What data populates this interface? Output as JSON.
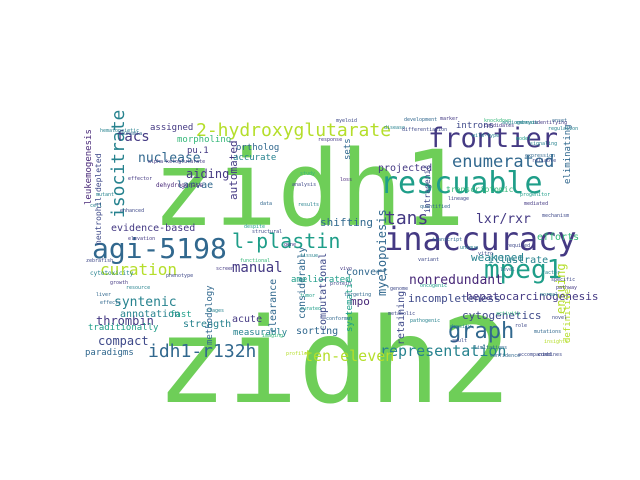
{
  "palette": {
    "purple": "#482878",
    "indigo": "#3e4989",
    "blue": "#31688e",
    "teal": "#26828e",
    "sea": "#1f9e89",
    "green": "#35b779",
    "lime": "#6ece58",
    "yellowgreen": "#b5de2b",
    "yellow": "#cde11d",
    "darkblue": "#443983"
  },
  "words": [
    {
      "text": "zidh2",
      "color": "lime"
    },
    {
      "text": "zidh1",
      "color": "lime"
    },
    {
      "text": "inaccuracy",
      "color": "darkblue"
    },
    {
      "text": "rescuable",
      "color": "sea"
    },
    {
      "text": "frontier",
      "color": "darkblue"
    },
    {
      "text": "agi-5198",
      "color": "blue"
    },
    {
      "text": "2-hydroxyglutarate",
      "color": "yellowgreen"
    },
    {
      "text": "mpeg1",
      "color": "sea"
    },
    {
      "text": "l-plastin",
      "color": "sea"
    },
    {
      "text": "enumerated",
      "color": "blue"
    },
    {
      "text": "isocitrate",
      "color": "teal"
    },
    {
      "text": "graph",
      "color": "blue"
    },
    {
      "text": "idh1-r132h",
      "color": "blue"
    },
    {
      "text": "representation",
      "color": "teal"
    },
    {
      "text": "tans",
      "color": "darkblue"
    },
    {
      "text": "curation",
      "color": "yellowgreen"
    },
    {
      "text": "ten-eleven",
      "color": "yellowgreen"
    },
    {
      "text": "nuclease",
      "color": "blue"
    },
    {
      "text": "manual",
      "color": "darkblue"
    },
    {
      "text": "facs",
      "color": "darkblue"
    },
    {
      "text": "lxr/rxr",
      "color": "darkblue"
    },
    {
      "text": "nonredundant",
      "color": "purple"
    },
    {
      "text": "syntenic",
      "color": "teal"
    },
    {
      "text": "incompleteness",
      "color": "indigo"
    },
    {
      "text": "cytogenetics",
      "color": "indigo"
    },
    {
      "text": "aiding",
      "color": "darkblue"
    },
    {
      "text": "thrombin",
      "color": "darkblue"
    },
    {
      "text": "myelopoiesis",
      "color": "blue"
    },
    {
      "text": "weakened",
      "color": "teal"
    },
    {
      "text": "compact",
      "color": "indigo"
    },
    {
      "text": "ensuing",
      "color": "yellowgreen"
    },
    {
      "text": "automated",
      "color": "darkblue"
    },
    {
      "text": "annotation",
      "color": "teal"
    },
    {
      "text": "hepatocarcinogenesis",
      "color": "darkblue"
    },
    {
      "text": "mpo",
      "color": "purple"
    },
    {
      "text": "illustrate",
      "color": "teal"
    },
    {
      "text": "efforts",
      "color": "green"
    },
    {
      "text": "larvae",
      "color": "blue"
    },
    {
      "text": "acute",
      "color": "darkblue"
    },
    {
      "text": "evidence-based",
      "color": "darkblue"
    },
    {
      "text": "assigned",
      "color": "darkblue"
    },
    {
      "text": "morpholino",
      "color": "green"
    },
    {
      "text": "accurate",
      "color": "teal"
    },
    {
      "text": "ortholog",
      "color": "blue"
    },
    {
      "text": "projected",
      "color": "darkblue"
    },
    {
      "text": "pu.1",
      "color": "darkblue"
    },
    {
      "text": "considerably",
      "color": "blue"
    },
    {
      "text": "shifting",
      "color": "blue"
    },
    {
      "text": "convert",
      "color": "blue"
    },
    {
      "text": "ameliorated",
      "color": "sea"
    },
    {
      "text": "sorting",
      "color": "blue"
    },
    {
      "text": "strength",
      "color": "teal"
    },
    {
      "text": "clearance",
      "color": "blue"
    },
    {
      "text": "methodology",
      "color": "blue"
    },
    {
      "text": "measurably",
      "color": "teal"
    },
    {
      "text": "computational",
      "color": "indigo"
    },
    {
      "text": "systematic",
      "color": "sea"
    },
    {
      "text": "retaining",
      "color": "indigo"
    },
    {
      "text": "definitive",
      "color": "yellowgreen"
    },
    {
      "text": "leukemogenesis",
      "color": "purple"
    },
    {
      "text": "neutrophil-depleted",
      "color": "indigo"
    },
    {
      "text": "paradigms",
      "color": "blue"
    },
    {
      "text": "traditionally",
      "color": "sea"
    },
    {
      "text": "fast",
      "color": "sea"
    },
    {
      "text": "eliminating",
      "color": "blue"
    },
    {
      "text": "introns",
      "color": "indigo"
    },
    {
      "text": "intragenic",
      "color": "indigo"
    },
    {
      "text": "transcriptomic",
      "color": "green"
    },
    {
      "text": "sets",
      "color": "blue"
    },
    {
      "text": "dehydrogenase",
      "color": "purple"
    },
    {
      "text": "cytotoxicity",
      "color": "teal"
    },
    {
      "text": "cell",
      "color": "teal"
    },
    {
      "text": "alpha-ketoglutarate",
      "color": "darkblue"
    },
    {
      "text": "hematopoietic",
      "color": "teal"
    },
    {
      "text": "leukemia",
      "color": "blue"
    },
    {
      "text": "mutant",
      "color": "teal"
    },
    {
      "text": "functional",
      "color": "green"
    },
    {
      "text": "genome",
      "color": "indigo"
    },
    {
      "text": "zebrafish",
      "color": "indigo"
    },
    {
      "text": "embryos",
      "color": "teal"
    },
    {
      "text": "knockdown",
      "color": "green"
    },
    {
      "text": "expression",
      "color": "blue"
    },
    {
      "text": "loss",
      "color": "purple"
    },
    {
      "text": "candidates",
      "color": "darkblue"
    },
    {
      "text": "angiogenesis",
      "color": "teal"
    },
    {
      "text": "identifying",
      "color": "darkblue"
    },
    {
      "text": "reliable",
      "color": "indigo"
    },
    {
      "text": "density",
      "color": "teal"
    },
    {
      "text": "confidence",
      "color": "blue"
    },
    {
      "text": "accompanied",
      "color": "indigo"
    },
    {
      "text": "combines",
      "color": "indigo"
    },
    {
      "text": "limitations",
      "color": "blue"
    },
    {
      "text": "insights",
      "color": "yellowgreen"
    },
    {
      "text": "pathogenic",
      "color": "teal"
    },
    {
      "text": "elevation",
      "color": "darkblue"
    },
    {
      "text": "structural",
      "color": "indigo"
    },
    {
      "text": "curated",
      "color": "sea"
    },
    {
      "text": "conforms",
      "color": "blue"
    },
    {
      "text": "targeting",
      "color": "blue"
    },
    {
      "text": "protein",
      "color": "indigo"
    },
    {
      "text": "profiles",
      "color": "yellowgreen"
    },
    {
      "text": "quantified",
      "color": "blue"
    },
    {
      "text": "despite",
      "color": "sea"
    },
    {
      "text": "mechanism",
      "color": "indigo"
    },
    {
      "text": "effector",
      "color": "darkblue"
    },
    {
      "text": "resource",
      "color": "teal"
    },
    {
      "text": "enhanced",
      "color": "indigo"
    },
    {
      "text": "model",
      "color": "sea"
    },
    {
      "text": "signaling",
      "color": "teal"
    },
    {
      "text": "variant",
      "color": "indigo"
    },
    {
      "text": "liver",
      "color": "blue"
    },
    {
      "text": "tumor",
      "color": "sea"
    },
    {
      "text": "gene",
      "color": "darkblue"
    },
    {
      "text": "study",
      "color": "green"
    },
    {
      "text": "analysis",
      "color": "indigo"
    },
    {
      "text": "data",
      "color": "blue"
    },
    {
      "text": "results",
      "color": "teal"
    },
    {
      "text": "marker",
      "color": "darkblue"
    },
    {
      "text": "lineage",
      "color": "indigo"
    },
    {
      "text": "onset",
      "color": "blue"
    },
    {
      "text": "regulation",
      "color": "teal"
    },
    {
      "text": "response",
      "color": "darkblue"
    },
    {
      "text": "myeloid",
      "color": "indigo"
    },
    {
      "text": "disease",
      "color": "teal"
    },
    {
      "text": "development",
      "color": "blue"
    },
    {
      "text": "differentiation",
      "color": "indigo"
    },
    {
      "text": "progenitor",
      "color": "sea"
    },
    {
      "text": "mediated",
      "color": "darkblue"
    },
    {
      "text": "required",
      "color": "indigo"
    },
    {
      "text": "level",
      "color": "blue"
    },
    {
      "text": "factor",
      "color": "teal"
    },
    {
      "text": "specific",
      "color": "indigo"
    },
    {
      "text": "pathway",
      "color": "darkblue"
    },
    {
      "text": "activity",
      "color": "green"
    },
    {
      "text": "normal",
      "color": "teal"
    },
    {
      "text": "role",
      "color": "indigo"
    },
    {
      "text": "mutations",
      "color": "blue"
    },
    {
      "text": "novel",
      "color": "indigo"
    },
    {
      "text": "tissue",
      "color": "teal"
    },
    {
      "text": "imaging",
      "color": "green"
    },
    {
      "text": "screen",
      "color": "darkblue"
    },
    {
      "text": "phenotype",
      "color": "indigo"
    },
    {
      "text": "stages",
      "color": "teal"
    },
    {
      "text": "growth",
      "color": "darkblue"
    },
    {
      "text": "effects",
      "color": "blue"
    },
    {
      "text": "metabolic",
      "color": "indigo"
    },
    {
      "text": "oncogenic",
      "color": "sea"
    },
    {
      "text": "transcript",
      "color": "blue"
    },
    {
      "text": "unique",
      "color": "teal"
    },
    {
      "text": "vitro",
      "color": "indigo"
    },
    {
      "text": "vivo",
      "color": "darkblue"
    },
    {
      "text": "wild-type",
      "color": "teal"
    },
    {
      "text": "adult",
      "color": "indigo"
    }
  ]
}
